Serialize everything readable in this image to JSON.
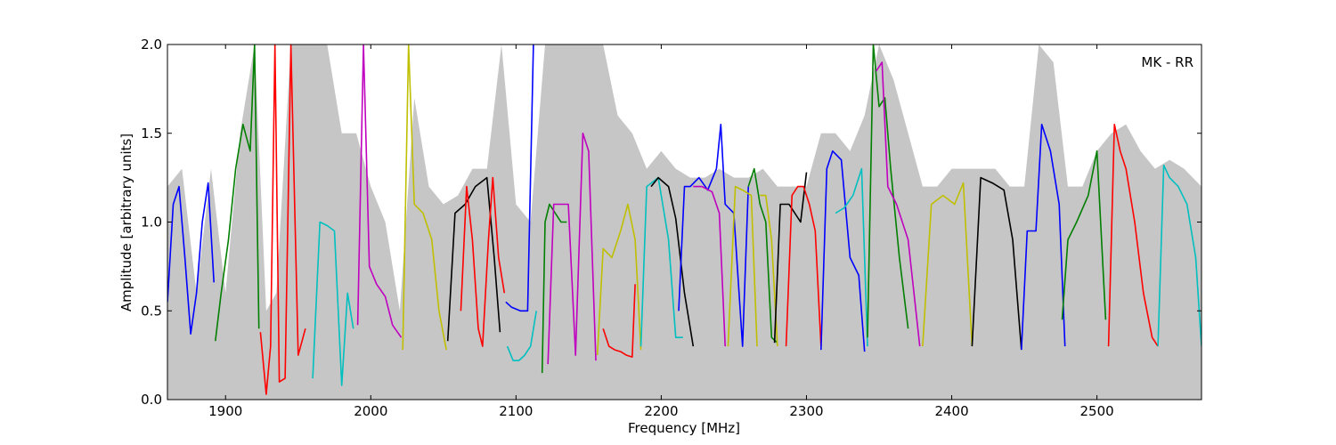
{
  "chart_data": {
    "type": "line",
    "xlabel": "Frequency [MHz]",
    "ylabel": "Amplitude [arbitrary units]",
    "annotation": "MK - RR",
    "annotation_position": "top-right",
    "xlim": [
      1860,
      2572
    ],
    "ylim": [
      0,
      2.0
    ],
    "xticks": [
      1900,
      2000,
      2100,
      2200,
      2300,
      2400,
      2500
    ],
    "yticks": [
      0.0,
      0.5,
      1.0,
      1.5,
      2.0
    ],
    "xtick_labels": [
      "1900",
      "2000",
      "2100",
      "2200",
      "2300",
      "2400",
      "2500"
    ],
    "ytick_labels": [
      "0.0",
      "0.5",
      "1.0",
      "1.5",
      "2.0"
    ],
    "grid": false,
    "legend": "none",
    "background_envelope_color": "#c0c0c0",
    "series": [
      {
        "color": "#0000ff",
        "x": [
          1860,
          1864,
          1868,
          1872,
          1876,
          1880,
          1884,
          1888,
          1892
        ],
        "y": [
          0.55,
          1.1,
          1.2,
          0.8,
          0.37,
          0.6,
          1.0,
          1.22,
          0.66
        ]
      },
      {
        "color": "#007f00",
        "x": [
          1893,
          1897,
          1902,
          1907,
          1912,
          1917,
          1920,
          1923
        ],
        "y": [
          0.33,
          0.6,
          0.9,
          1.3,
          1.55,
          1.4,
          2.0,
          0.4
        ]
      },
      {
        "color": "#ff0000",
        "x": [
          1924,
          1928,
          1931,
          1934,
          1937,
          1941,
          1945,
          1950,
          1955
        ],
        "y": [
          0.38,
          0.03,
          0.3,
          2.0,
          0.1,
          0.12,
          2.0,
          0.25,
          0.4
        ]
      },
      {
        "color": "#00bfbf",
        "x": [
          1960,
          1965,
          1970,
          1975,
          1980,
          1984,
          1988
        ],
        "y": [
          0.12,
          1.0,
          0.98,
          0.95,
          0.08,
          0.6,
          0.4
        ]
      },
      {
        "color": "#bf00bf",
        "x": [
          1991,
          1995,
          1999,
          2004,
          2010,
          2015,
          2021
        ],
        "y": [
          0.42,
          2.0,
          0.75,
          0.65,
          0.58,
          0.42,
          0.35
        ]
      },
      {
        "color": "#bfbf00",
        "x": [
          2022,
          2026,
          2030,
          2036,
          2042,
          2047,
          2052
        ],
        "y": [
          0.28,
          2.0,
          1.1,
          1.05,
          0.9,
          0.5,
          0.28
        ]
      },
      {
        "color": "#000000",
        "x": [
          2053,
          2058,
          2065,
          2072,
          2080,
          2085,
          2089
        ],
        "y": [
          0.33,
          1.05,
          1.1,
          1.2,
          1.25,
          0.8,
          0.38
        ]
      },
      {
        "color": "#ff0000",
        "x": [
          2062,
          2066,
          2070,
          2074,
          2077,
          2081,
          2084,
          2088,
          2092
        ],
        "y": [
          0.5,
          1.2,
          0.9,
          0.4,
          0.3,
          0.9,
          1.25,
          0.8,
          0.6
        ]
      },
      {
        "color": "#0000ff",
        "x": [
          2093,
          2097,
          2103,
          2108,
          2112
        ],
        "y": [
          0.55,
          0.52,
          0.5,
          0.5,
          2.0
        ]
      },
      {
        "color": "#00bfbf",
        "x": [
          2094,
          2098,
          2102,
          2106,
          2110,
          2114
        ],
        "y": [
          0.3,
          0.22,
          0.22,
          0.25,
          0.3,
          0.5
        ]
      },
      {
        "color": "#007f00",
        "x": [
          2118,
          2120,
          2123,
          2127,
          2131,
          2135
        ],
        "y": [
          0.15,
          1.0,
          1.1,
          1.05,
          1.0,
          1.0
        ]
      },
      {
        "color": "#bf00bf",
        "x": [
          2122,
          2126,
          2131,
          2136,
          2141,
          2146,
          2150,
          2155
        ],
        "y": [
          0.2,
          1.1,
          1.1,
          1.1,
          0.25,
          1.5,
          1.4,
          0.22
        ]
      },
      {
        "color": "#bfbf00",
        "x": [
          2156,
          2160,
          2166,
          2172,
          2177,
          2182,
          2186
        ],
        "y": [
          0.25,
          0.85,
          0.8,
          0.95,
          1.1,
          0.9,
          0.28
        ]
      },
      {
        "color": "#ff0000",
        "x": [
          2160,
          2164,
          2168,
          2172,
          2176,
          2180,
          2182
        ],
        "y": [
          0.4,
          0.3,
          0.28,
          0.27,
          0.25,
          0.24,
          0.65
        ]
      },
      {
        "color": "#00bfbf",
        "x": [
          2186,
          2190,
          2198,
          2205,
          2210,
          2215
        ],
        "y": [
          0.3,
          1.2,
          1.25,
          0.9,
          0.35,
          0.35
        ]
      },
      {
        "color": "#000000",
        "x": [
          2193,
          2198,
          2205,
          2210,
          2216,
          2222
        ],
        "y": [
          1.2,
          1.25,
          1.2,
          1.02,
          0.6,
          0.3
        ]
      },
      {
        "color": "#0000ff",
        "x": [
          2212,
          2216,
          2220,
          2226,
          2232,
          2238
        ],
        "y": [
          0.5,
          1.2,
          1.2,
          1.25,
          1.18,
          1.3
        ]
      },
      {
        "color": "#bf00bf",
        "x": [
          2222,
          2228,
          2235,
          2240,
          2244
        ],
        "y": [
          1.2,
          1.2,
          1.17,
          1.05,
          0.3
        ]
      },
      {
        "color": "#0000ff",
        "x": [
          2238,
          2241,
          2244,
          2250,
          2256,
          2260
        ],
        "y": [
          1.3,
          1.55,
          1.1,
          1.05,
          0.3,
          1.2
        ]
      },
      {
        "color": "#bfbf00",
        "x": [
          2246,
          2251,
          2256,
          2262,
          2266
        ],
        "y": [
          0.3,
          1.2,
          1.18,
          1.15,
          0.3
        ]
      },
      {
        "color": "#007f00",
        "x": [
          2260,
          2264,
          2268,
          2272,
          2276,
          2280
        ],
        "y": [
          1.2,
          1.3,
          1.1,
          1.0,
          0.35,
          0.32
        ]
      },
      {
        "color": "#bfbf00",
        "x": [
          2268,
          2272,
          2276,
          2280
        ],
        "y": [
          1.15,
          1.15,
          0.9,
          0.3
        ]
      },
      {
        "color": "#000000",
        "x": [
          2278,
          2282,
          2288,
          2292,
          2296,
          2300
        ],
        "y": [
          0.32,
          1.1,
          1.1,
          1.05,
          1.0,
          1.28
        ]
      },
      {
        "color": "#ff0000",
        "x": [
          2286,
          2290,
          2294,
          2298,
          2302,
          2306,
          2310
        ],
        "y": [
          0.3,
          1.15,
          1.2,
          1.2,
          1.1,
          0.95,
          0.3
        ]
      },
      {
        "color": "#0000ff",
        "x": [
          2310,
          2314,
          2318,
          2324,
          2330,
          2336,
          2340
        ],
        "y": [
          0.28,
          1.3,
          1.4,
          1.35,
          0.8,
          0.7,
          0.27
        ]
      },
      {
        "color": "#00bfbf",
        "x": [
          2320,
          2326,
          2332,
          2338,
          2342
        ],
        "y": [
          1.05,
          1.08,
          1.15,
          1.3,
          0.3
        ]
      },
      {
        "color": "#007f00",
        "x": [
          2342,
          2346,
          2350,
          2354,
          2358,
          2364,
          2370
        ],
        "y": [
          0.35,
          2.0,
          1.65,
          1.7,
          1.3,
          0.8,
          0.4
        ]
      },
      {
        "color": "#bf00bf",
        "x": [
          2348,
          2352,
          2356,
          2362,
          2370,
          2378
        ],
        "y": [
          1.85,
          1.9,
          1.2,
          1.1,
          0.9,
          0.3
        ]
      },
      {
        "color": "#bfbf00",
        "x": [
          2380,
          2386,
          2394,
          2402,
          2408,
          2414
        ],
        "y": [
          0.3,
          1.1,
          1.15,
          1.1,
          1.22,
          0.3
        ]
      },
      {
        "color": "#000000",
        "x": [
          2414,
          2420,
          2428,
          2436,
          2442,
          2448
        ],
        "y": [
          0.3,
          1.25,
          1.22,
          1.18,
          0.9,
          0.28
        ]
      },
      {
        "color": "#0000ff",
        "x": [
          2448,
          2452,
          2458,
          2462,
          2468,
          2474,
          2478
        ],
        "y": [
          0.28,
          0.95,
          0.95,
          1.55,
          1.4,
          1.1,
          0.3
        ]
      },
      {
        "color": "#007f00",
        "x": [
          2476,
          2480,
          2486,
          2494,
          2500,
          2506
        ],
        "y": [
          0.45,
          0.9,
          1.0,
          1.15,
          1.4,
          0.45
        ]
      },
      {
        "color": "#ff0000",
        "x": [
          2508,
          2512,
          2516,
          2520,
          2526,
          2532,
          2538,
          2542
        ],
        "y": [
          0.3,
          1.55,
          1.4,
          1.3,
          1.0,
          0.6,
          0.35,
          0.3
        ]
      },
      {
        "color": "#00bfbf",
        "x": [
          2542,
          2546,
          2550,
          2556,
          2562,
          2568,
          2572
        ],
        "y": [
          0.3,
          1.32,
          1.25,
          1.2,
          1.1,
          0.8,
          0.3
        ]
      }
    ],
    "envelope": {
      "x": [
        1860,
        1870,
        1880,
        1890,
        1900,
        1910,
        1920,
        1928,
        1935,
        1945,
        1955,
        1962,
        1970,
        1980,
        1990,
        2000,
        2010,
        2020,
        2030,
        2040,
        2050,
        2060,
        2070,
        2080,
        2090,
        2100,
        2110,
        2120,
        2130,
        2140,
        2150,
        2160,
        2170,
        2180,
        2190,
        2200,
        2210,
        2220,
        2230,
        2240,
        2250,
        2260,
        2270,
        2280,
        2290,
        2300,
        2310,
        2320,
        2330,
        2340,
        2350,
        2360,
        2370,
        2380,
        2390,
        2400,
        2410,
        2420,
        2430,
        2440,
        2450,
        2460,
        2470,
        2480,
        2490,
        2500,
        2510,
        2520,
        2530,
        2540,
        2550,
        2560,
        2572
      ],
      "y": [
        1.2,
        1.3,
        0.6,
        1.3,
        0.6,
        1.5,
        2.0,
        0.5,
        0.6,
        2.0,
        2.0,
        2.0,
        2.0,
        1.5,
        1.5,
        1.2,
        1.0,
        0.5,
        1.7,
        1.2,
        1.1,
        1.15,
        1.3,
        1.3,
        2.0,
        1.1,
        1.0,
        2.0,
        2.0,
        2.0,
        2.0,
        2.0,
        1.6,
        1.5,
        1.3,
        1.4,
        1.3,
        1.25,
        1.25,
        1.3,
        1.25,
        1.25,
        1.3,
        1.2,
        1.2,
        1.2,
        1.5,
        1.5,
        1.4,
        1.6,
        2.0,
        1.8,
        1.5,
        1.2,
        1.2,
        1.3,
        1.3,
        1.3,
        1.3,
        1.2,
        1.2,
        2.0,
        1.9,
        1.2,
        1.2,
        1.4,
        1.5,
        1.55,
        1.4,
        1.3,
        1.35,
        1.3,
        1.2
      ]
    }
  }
}
